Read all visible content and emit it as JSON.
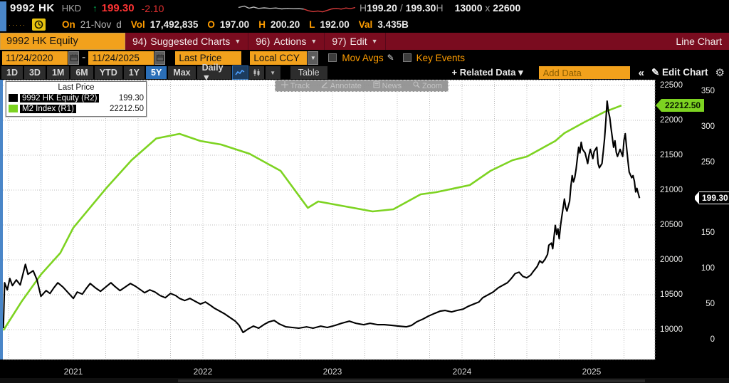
{
  "title_row": {
    "ticker": "9992 HK",
    "currency": "HKD",
    "up_arrow": "↑",
    "last_price": "199.30",
    "change": "-2.10",
    "range": {
      "h1": "H",
      "bid": "199.20",
      "sep": "/",
      "ask": "199.30",
      "h2": "H"
    },
    "size": {
      "bid_size": "13000",
      "x": "x",
      "ask_size": "22600"
    },
    "sparkline": {
      "grey": [
        [
          0,
          0.42
        ],
        [
          0.05,
          0.28
        ],
        [
          0.09,
          0.5
        ],
        [
          0.13,
          0.38
        ],
        [
          0.17,
          0.52
        ],
        [
          0.22,
          0.46
        ],
        [
          0.27,
          0.52
        ],
        [
          0.32,
          0.48
        ],
        [
          0.37,
          0.58
        ],
        [
          0.42,
          0.52
        ],
        [
          0.47,
          0.56
        ],
        [
          0.52,
          0.55
        ],
        [
          0.56,
          0.6
        ]
      ],
      "red": [
        [
          0.56,
          0.6
        ],
        [
          0.6,
          0.78
        ],
        [
          0.64,
          0.88
        ],
        [
          0.68,
          0.8
        ],
        [
          0.72,
          0.9
        ],
        [
          0.76,
          0.74
        ],
        [
          0.8,
          0.58
        ],
        [
          0.84,
          0.52
        ],
        [
          0.88,
          0.6
        ],
        [
          0.92,
          0.48
        ],
        [
          0.96,
          0.55
        ],
        [
          1,
          0.42
        ]
      ]
    }
  },
  "stats_row": {
    "dots": "·····",
    "items": [
      {
        "label": "On",
        "value": "21-Nov",
        "grey": true
      },
      {
        "label": "",
        "value": "d",
        "grey": true
      },
      {
        "label": "Vol",
        "value": "17,492,835",
        "grey": false
      },
      {
        "label": "O",
        "value": "197.00",
        "grey": false
      },
      {
        "label": "H",
        "value": "200.20",
        "grey": false
      },
      {
        "label": "L",
        "value": "192.00",
        "grey": false
      },
      {
        "label": "Val",
        "value": "3.435B",
        "grey": false
      }
    ]
  },
  "menu_row": {
    "ticker_button": "9992 HK Equity",
    "items": [
      {
        "num": "94)",
        "label": "Suggested Charts"
      },
      {
        "num": "96)",
        "label": "Actions"
      },
      {
        "num": "97)",
        "label": "Edit"
      }
    ],
    "right_label": "Line Chart"
  },
  "controls_row": {
    "date_from": "11/24/2020",
    "date_sep": "-",
    "date_to": "11/24/2025",
    "field": "Last Price",
    "currency": "Local CCY",
    "mov_avgs": "Mov Avgs",
    "key_events": "Key Events"
  },
  "period_row": {
    "ranges": [
      "1D",
      "3D",
      "1M",
      "6M",
      "YTD",
      "1Y",
      "5Y",
      "Max"
    ],
    "active_range": "5Y",
    "frequency": "Daily ▼",
    "table": "Table",
    "related_data": "+ Related Data ▾",
    "add_data_placeholder": "Add Data",
    "collapse": "«",
    "edit_chart": "✎ Edit Chart",
    "gear": "⚙"
  },
  "chart": {
    "legend": {
      "title": "Last Price",
      "entries": [
        {
          "name": "9992 HK Equity (R2)",
          "value": "199.30",
          "color": "#000000"
        },
        {
          "name": "M2 Index (R1)",
          "value": "22212.50",
          "color": "#7dd321"
        }
      ]
    },
    "toolbar": [
      "Track",
      "Annotate",
      "News",
      "Zoom"
    ],
    "tag_green": "22212.50",
    "tag_white": "199.30",
    "colors": {
      "accent_blue": "#2b6fb8",
      "amber": "#f2a11c",
      "menu_red": "#7a0c1f",
      "series_green": "#7dd321",
      "price_red": "#ff3434"
    }
  },
  "chart_data": {
    "type": "line",
    "title": "9992 HK Equity (Last Price) vs M2 Index, 5Y Daily, 11/24/2020-11/24/2025",
    "x_ticks": [
      2021,
      2022,
      2023,
      2024,
      2025
    ],
    "x_tick_labels": [
      "2021",
      "2022",
      "2023",
      "2024",
      "2025"
    ],
    "grid": true,
    "legend_position": "top-left",
    "axes": {
      "r1": {
        "label": "M2 Index",
        "ticks": [
          22500,
          22000,
          21500,
          21000,
          20500,
          20000,
          19500,
          19000
        ],
        "range": [
          19000,
          22500
        ]
      },
      "r2": {
        "label": "9992 HK Equity",
        "ticks": [
          350,
          300,
          250,
          200,
          150,
          100,
          50,
          0
        ],
        "range": [
          0,
          350
        ]
      }
    },
    "series": [
      {
        "name": "M2 Index",
        "axis": "r1",
        "color": "#7dd321",
        "last": 22212.5,
        "points": [
          [
            2020.96,
            18990
          ],
          [
            2021.1,
            19400
          ],
          [
            2021.25,
            19790
          ],
          [
            2021.4,
            20100
          ],
          [
            2021.5,
            20460
          ],
          [
            2021.76,
            21040
          ],
          [
            2021.95,
            21430
          ],
          [
            2022.14,
            21740
          ],
          [
            2022.32,
            21806
          ],
          [
            2022.48,
            21704
          ],
          [
            2022.64,
            21653
          ],
          [
            2022.86,
            21520
          ],
          [
            2023.1,
            21276
          ],
          [
            2023.31,
            20745
          ],
          [
            2023.39,
            20837
          ],
          [
            2023.6,
            20765
          ],
          [
            2023.81,
            20694
          ],
          [
            2023.97,
            20724
          ],
          [
            2024.18,
            20939
          ],
          [
            2024.3,
            20969
          ],
          [
            2024.56,
            21071
          ],
          [
            2024.72,
            21276
          ],
          [
            2024.89,
            21429
          ],
          [
            2025.0,
            21480
          ],
          [
            2025.22,
            21704
          ],
          [
            2025.29,
            21816
          ],
          [
            2025.44,
            21969
          ],
          [
            2025.6,
            22120
          ],
          [
            2025.73,
            22212.5
          ]
        ]
      },
      {
        "name": "9992 HK Equity",
        "axis": "r2",
        "color": "#000000",
        "last": 199.3,
        "points": [
          [
            2020.96,
            16
          ],
          [
            2020.97,
            80
          ],
          [
            2020.99,
            70
          ],
          [
            2021.01,
            86
          ],
          [
            2021.03,
            76
          ],
          [
            2021.06,
            84
          ],
          [
            2021.09,
            77
          ],
          [
            2021.13,
            106
          ],
          [
            2021.15,
            92
          ],
          [
            2021.19,
            97
          ],
          [
            2021.22,
            84
          ],
          [
            2021.25,
            61
          ],
          [
            2021.29,
            69
          ],
          [
            2021.32,
            65
          ],
          [
            2021.35,
            73
          ],
          [
            2021.38,
            80
          ],
          [
            2021.42,
            74
          ],
          [
            2021.45,
            68
          ],
          [
            2021.48,
            62
          ],
          [
            2021.5,
            58
          ],
          [
            2021.53,
            67
          ],
          [
            2021.57,
            64
          ],
          [
            2021.6,
            72
          ],
          [
            2021.63,
            79
          ],
          [
            2021.67,
            73
          ],
          [
            2021.71,
            68
          ],
          [
            2021.75,
            74
          ],
          [
            2021.79,
            80
          ],
          [
            2021.82,
            75
          ],
          [
            2021.86,
            69
          ],
          [
            2021.9,
            74
          ],
          [
            2021.94,
            79
          ],
          [
            2021.98,
            75
          ],
          [
            2022.02,
            70
          ],
          [
            2022.05,
            66
          ],
          [
            2022.09,
            70
          ],
          [
            2022.13,
            67
          ],
          [
            2022.17,
            62
          ],
          [
            2022.21,
            59
          ],
          [
            2022.25,
            65
          ],
          [
            2022.29,
            62
          ],
          [
            2022.32,
            58
          ],
          [
            2022.36,
            55
          ],
          [
            2022.4,
            58
          ],
          [
            2022.44,
            54
          ],
          [
            2022.48,
            50
          ],
          [
            2022.52,
            53
          ],
          [
            2022.56,
            48
          ],
          [
            2022.59,
            44
          ],
          [
            2022.63,
            40
          ],
          [
            2022.67,
            36
          ],
          [
            2022.71,
            31
          ],
          [
            2022.75,
            26
          ],
          [
            2022.78,
            20
          ],
          [
            2022.81,
            10
          ],
          [
            2022.85,
            15
          ],
          [
            2022.89,
            19
          ],
          [
            2022.93,
            16
          ],
          [
            2022.97,
            21
          ],
          [
            2023.01,
            25
          ],
          [
            2023.05,
            27
          ],
          [
            2023.09,
            22
          ],
          [
            2023.14,
            18
          ],
          [
            2023.19,
            17
          ],
          [
            2023.24,
            16
          ],
          [
            2023.3,
            18
          ],
          [
            2023.35,
            16
          ],
          [
            2023.41,
            19
          ],
          [
            2023.46,
            17
          ],
          [
            2023.52,
            20
          ],
          [
            2023.57,
            23
          ],
          [
            2023.63,
            26
          ],
          [
            2023.68,
            23
          ],
          [
            2023.74,
            21
          ],
          [
            2023.79,
            23
          ],
          [
            2023.85,
            21
          ],
          [
            2023.9,
            21
          ],
          [
            2023.96,
            20
          ],
          [
            2024.01,
            19
          ],
          [
            2024.07,
            18
          ],
          [
            2024.11,
            20
          ],
          [
            2024.15,
            25
          ],
          [
            2024.2,
            29
          ],
          [
            2024.24,
            33
          ],
          [
            2024.29,
            37
          ],
          [
            2024.33,
            40
          ],
          [
            2024.37,
            41
          ],
          [
            2024.42,
            39
          ],
          [
            2024.46,
            41
          ],
          [
            2024.51,
            43
          ],
          [
            2024.55,
            47
          ],
          [
            2024.59,
            50
          ],
          [
            2024.63,
            53
          ],
          [
            2024.66,
            59
          ],
          [
            2024.7,
            63
          ],
          [
            2024.74,
            67
          ],
          [
            2024.78,
            73
          ],
          [
            2024.82,
            77
          ],
          [
            2024.85,
            80
          ],
          [
            2024.88,
            86
          ],
          [
            2024.91,
            93
          ],
          [
            2024.94,
            95
          ],
          [
            2024.97,
            89
          ],
          [
            2025.0,
            87
          ],
          [
            2025.03,
            91
          ],
          [
            2025.05,
            96
          ],
          [
            2025.08,
            103
          ],
          [
            2025.1,
            111
          ],
          [
            2025.12,
            108
          ],
          [
            2025.14,
            113
          ],
          [
            2025.16,
            120
          ],
          [
            2025.17,
            133
          ],
          [
            2025.19,
            136
          ],
          [
            2025.2,
            128
          ],
          [
            2025.22,
            161
          ],
          [
            2025.23,
            148
          ],
          [
            2025.24,
            156
          ],
          [
            2025.25,
            142
          ],
          [
            2025.26,
            160
          ],
          [
            2025.27,
            173
          ],
          [
            2025.29,
            198
          ],
          [
            2025.3,
            186
          ],
          [
            2025.31,
            181
          ],
          [
            2025.33,
            195
          ],
          [
            2025.34,
            216
          ],
          [
            2025.35,
            231
          ],
          [
            2025.36,
            222
          ],
          [
            2025.37,
            228
          ],
          [
            2025.38,
            240
          ],
          [
            2025.4,
            271
          ],
          [
            2025.41,
            263
          ],
          [
            2025.42,
            278
          ],
          [
            2025.43,
            268
          ],
          [
            2025.45,
            263
          ],
          [
            2025.47,
            248
          ],
          [
            2025.48,
            260
          ],
          [
            2025.49,
            268
          ],
          [
            2025.51,
            255
          ],
          [
            2025.52,
            265
          ],
          [
            2025.54,
            271
          ],
          [
            2025.55,
            248
          ],
          [
            2025.56,
            242
          ],
          [
            2025.58,
            248
          ],
          [
            2025.59,
            265
          ],
          [
            2025.6,
            283
          ],
          [
            2025.61,
            308
          ],
          [
            2025.62,
            336
          ],
          [
            2025.63,
            321
          ],
          [
            2025.64,
            313
          ],
          [
            2025.65,
            298
          ],
          [
            2025.67,
            271
          ],
          [
            2025.68,
            280
          ],
          [
            2025.69,
            264
          ],
          [
            2025.7,
            258
          ],
          [
            2025.71,
            263
          ],
          [
            2025.72,
            268
          ],
          [
            2025.74,
            258
          ],
          [
            2025.75,
            281
          ],
          [
            2025.76,
            290
          ],
          [
            2025.77,
            271
          ],
          [
            2025.78,
            252
          ],
          [
            2025.79,
            236
          ],
          [
            2025.81,
            228
          ],
          [
            2025.82,
            231
          ],
          [
            2025.83,
            223
          ],
          [
            2025.84,
            208
          ],
          [
            2025.85,
            213
          ],
          [
            2025.86,
            206
          ],
          [
            2025.87,
            199.3
          ]
        ]
      }
    ]
  }
}
